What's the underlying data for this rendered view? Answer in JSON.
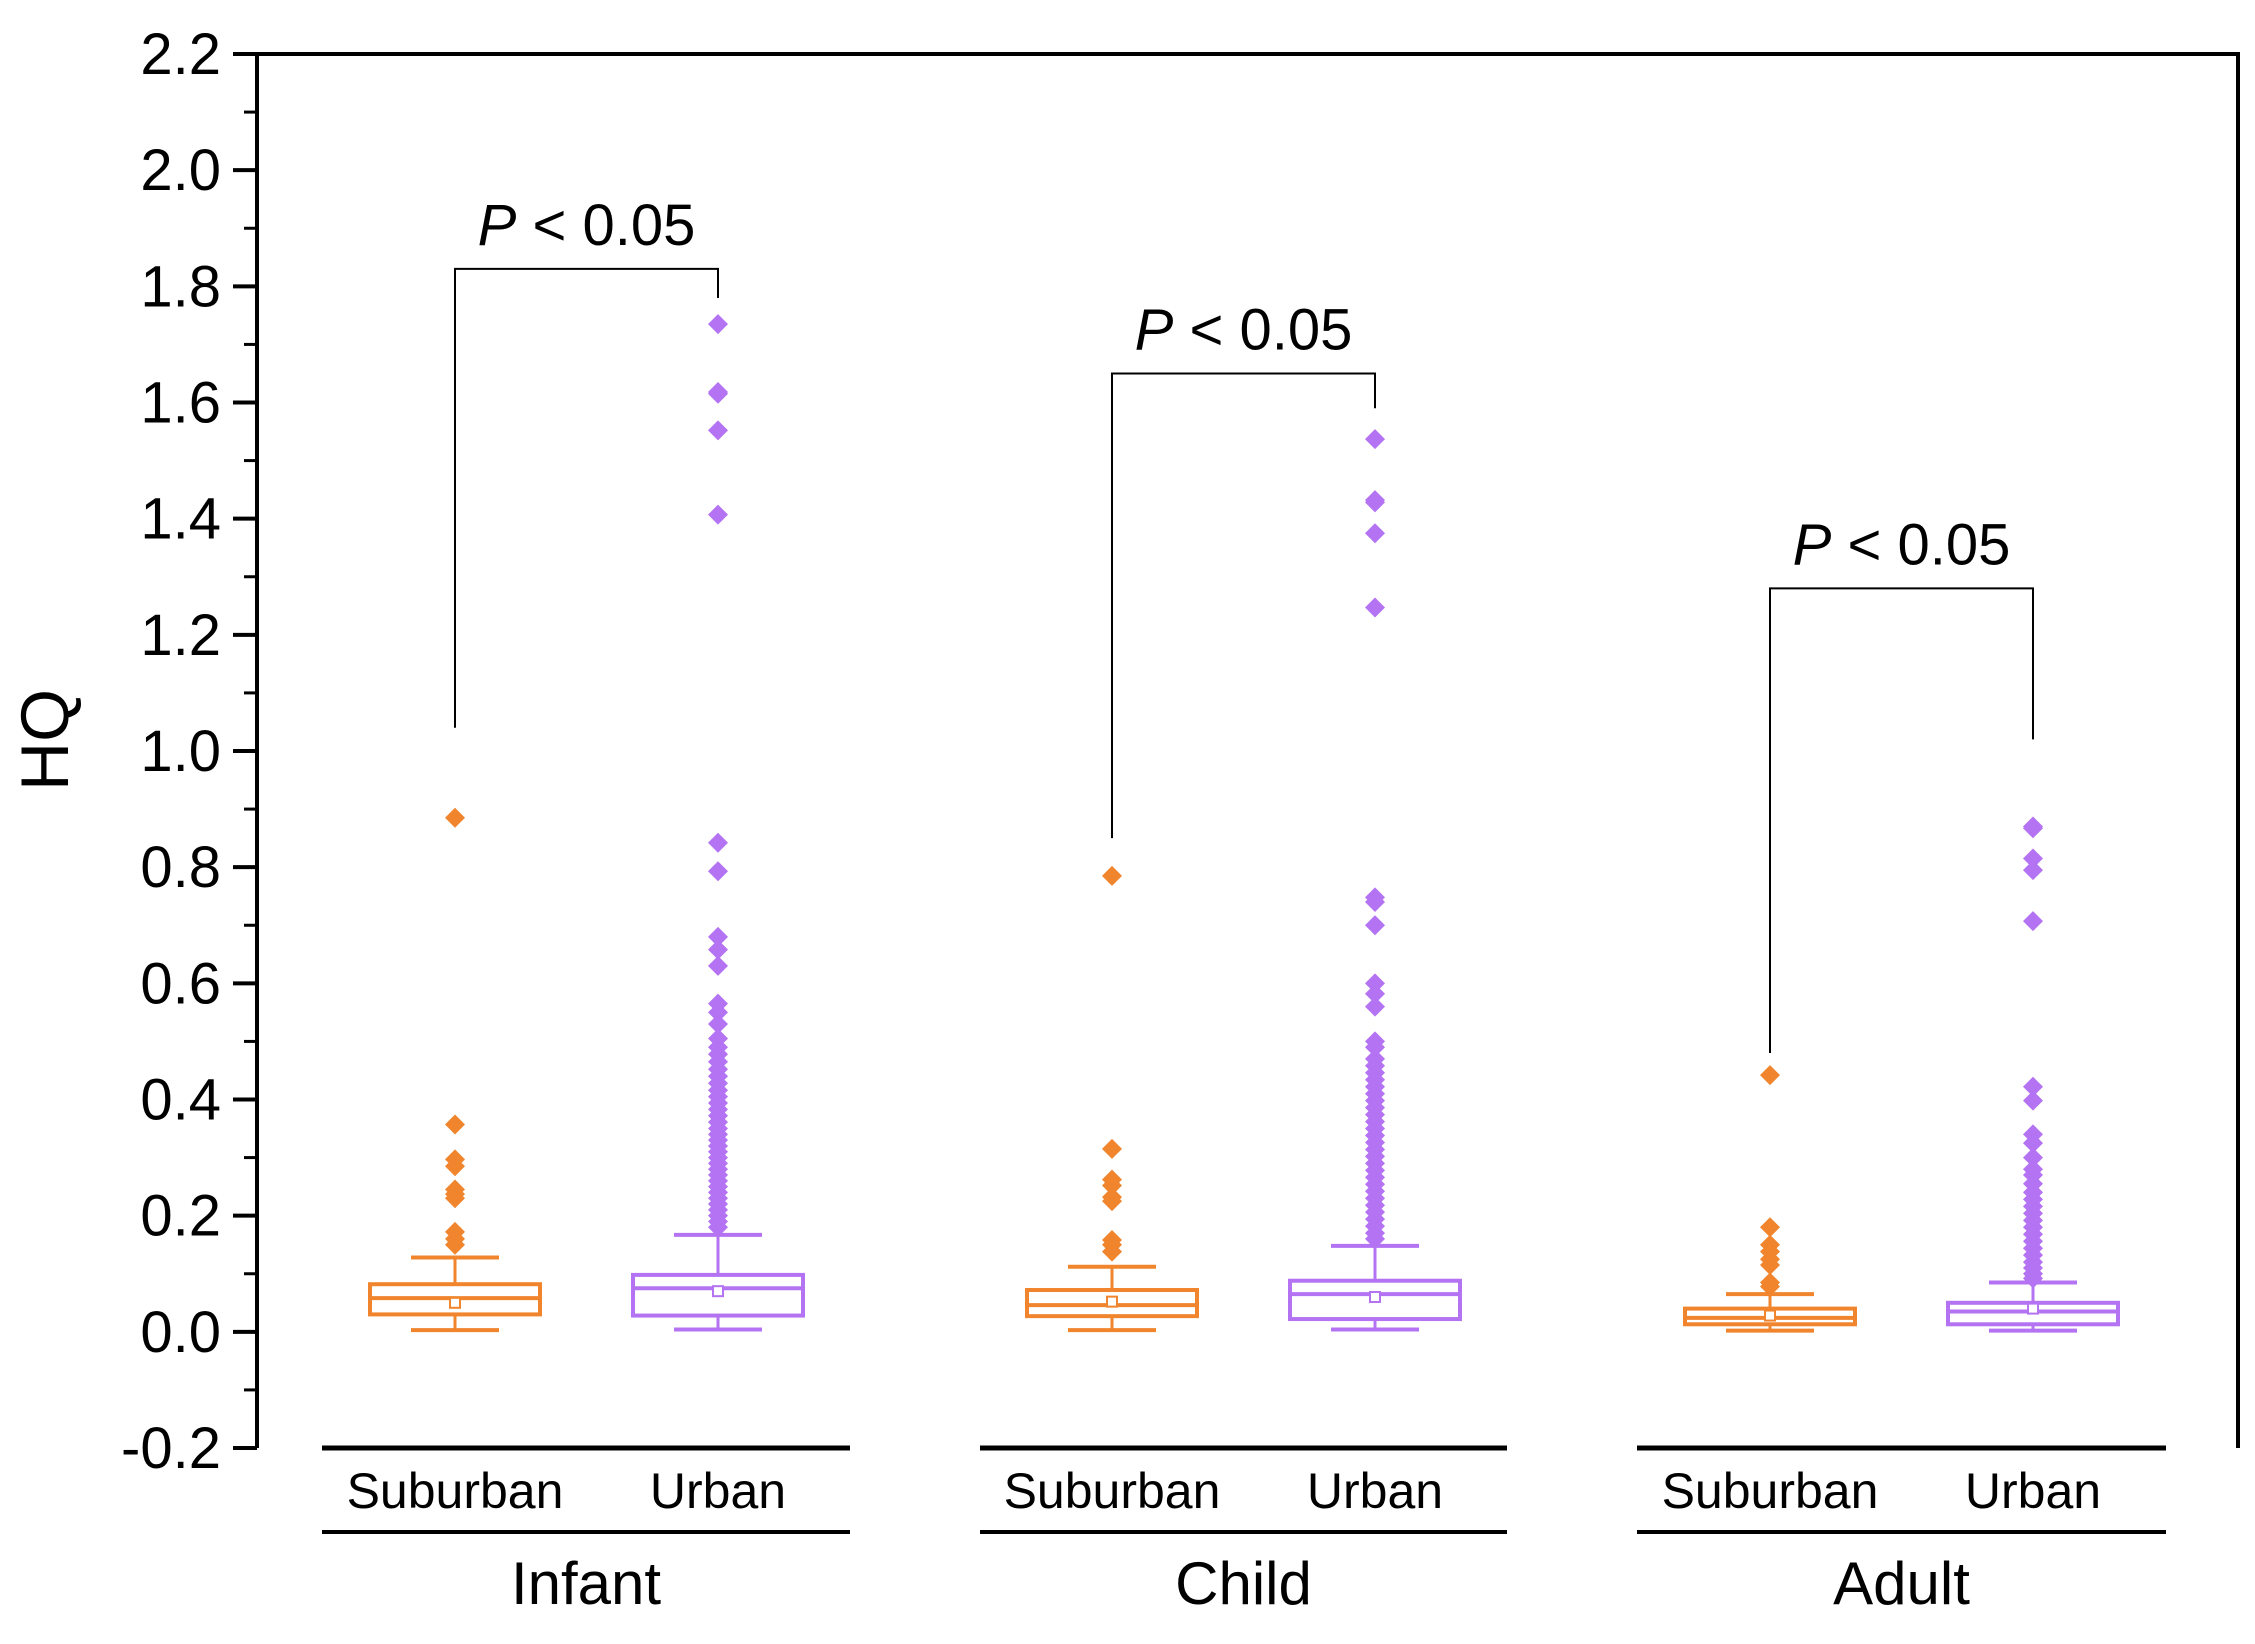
{
  "chart_data": {
    "type": "box",
    "title": "",
    "ylabel": "HQ",
    "xlabel": "",
    "ylim": [
      -0.2,
      2.2
    ],
    "yticks": [
      -0.2,
      0.0,
      0.2,
      0.4,
      0.6,
      0.8,
      1.0,
      1.2,
      1.4,
      1.6,
      1.8,
      2.0,
      2.2
    ],
    "ytick_labels": [
      "-0.2",
      "0.0",
      "0.2",
      "0.4",
      "0.6",
      "0.8",
      "1.0",
      "1.2",
      "1.4",
      "1.6",
      "1.8",
      "2.0",
      "2.2"
    ],
    "groups": [
      {
        "name": "Infant",
        "annotation": {
          "p": "P",
          "rest": " < 0.05",
          "bracket_y": 1.83,
          "left_end": 1.04,
          "right_end": 1.78
        },
        "boxes": [
          {
            "category": "Suburban",
            "color": "#f0852d",
            "whisker_low": 0.003,
            "q1": 0.03,
            "median": 0.058,
            "mean": 0.05,
            "q3": 0.082,
            "whisker_high": 0.128,
            "outliers": [
              0.885,
              0.357,
              0.297,
              0.285,
              0.245,
              0.237,
              0.23,
              0.172,
              0.16,
              0.15
            ]
          },
          {
            "category": "Urban",
            "color": "#b373f2",
            "whisker_low": 0.004,
            "q1": 0.028,
            "median": 0.075,
            "mean": 0.07,
            "q3": 0.098,
            "whisker_high": 0.167,
            "outliers": [
              1.735,
              1.618,
              1.615,
              1.552,
              1.407,
              0.842,
              0.793,
              0.68,
              0.658,
              0.63,
              0.565,
              0.55,
              0.53,
              0.505,
              0.49,
              0.478,
              0.465,
              0.452,
              0.44,
              0.428,
              0.416,
              0.405,
              0.394,
              0.383,
              0.372,
              0.361,
              0.35,
              0.34,
              0.33,
              0.32,
              0.31,
              0.3,
              0.29,
              0.28,
              0.27,
              0.26,
              0.25,
              0.24,
              0.23,
              0.22,
              0.21,
              0.2,
              0.19,
              0.18
            ]
          }
        ]
      },
      {
        "name": "Child",
        "annotation": {
          "p": "P",
          "rest": " < 0.05",
          "bracket_y": 1.65,
          "left_end": 0.85,
          "right_end": 1.59
        },
        "boxes": [
          {
            "category": "Suburban",
            "color": "#f0852d",
            "whisker_low": 0.003,
            "q1": 0.027,
            "median": 0.046,
            "mean": 0.052,
            "q3": 0.072,
            "whisker_high": 0.112,
            "outliers": [
              0.785,
              0.315,
              0.262,
              0.252,
              0.232,
              0.225,
              0.158,
              0.15,
              0.138
            ]
          },
          {
            "category": "Urban",
            "color": "#b373f2",
            "whisker_low": 0.004,
            "q1": 0.022,
            "median": 0.065,
            "mean": 0.06,
            "q3": 0.088,
            "whisker_high": 0.148,
            "outliers": [
              1.537,
              1.432,
              1.428,
              1.375,
              1.247,
              0.748,
              0.74,
              0.7,
              0.6,
              0.582,
              0.56,
              0.5,
              0.49,
              0.47,
              0.458,
              0.446,
              0.434,
              0.422,
              0.41,
              0.398,
              0.386,
              0.374,
              0.362,
              0.35,
              0.338,
              0.326,
              0.314,
              0.302,
              0.29,
              0.278,
              0.266,
              0.254,
              0.242,
              0.23,
              0.218,
              0.206,
              0.194,
              0.182,
              0.17,
              0.16
            ]
          }
        ]
      },
      {
        "name": "Adult",
        "annotation": {
          "p": "P",
          "rest": " < 0.05",
          "bracket_y": 1.28,
          "left_end": 0.48,
          "right_end": 1.02
        },
        "boxes": [
          {
            "category": "Suburban",
            "color": "#f0852d",
            "whisker_low": 0.002,
            "q1": 0.013,
            "median": 0.024,
            "mean": 0.028,
            "q3": 0.04,
            "whisker_high": 0.065,
            "outliers": [
              0.442,
              0.18,
              0.15,
              0.138,
              0.125,
              0.115,
              0.085,
              0.078
            ]
          },
          {
            "category": "Urban",
            "color": "#b373f2",
            "whisker_low": 0.002,
            "q1": 0.013,
            "median": 0.035,
            "mean": 0.04,
            "q3": 0.05,
            "whisker_high": 0.085,
            "outliers": [
              0.87,
              0.867,
              0.815,
              0.795,
              0.707,
              0.422,
              0.398,
              0.34,
              0.325,
              0.3,
              0.28,
              0.27,
              0.255,
              0.24,
              0.228,
              0.216,
              0.204,
              0.192,
              0.18,
              0.168,
              0.156,
              0.144,
              0.132,
              0.12,
              0.11,
              0.1,
              0.092
            ]
          }
        ]
      }
    ]
  }
}
